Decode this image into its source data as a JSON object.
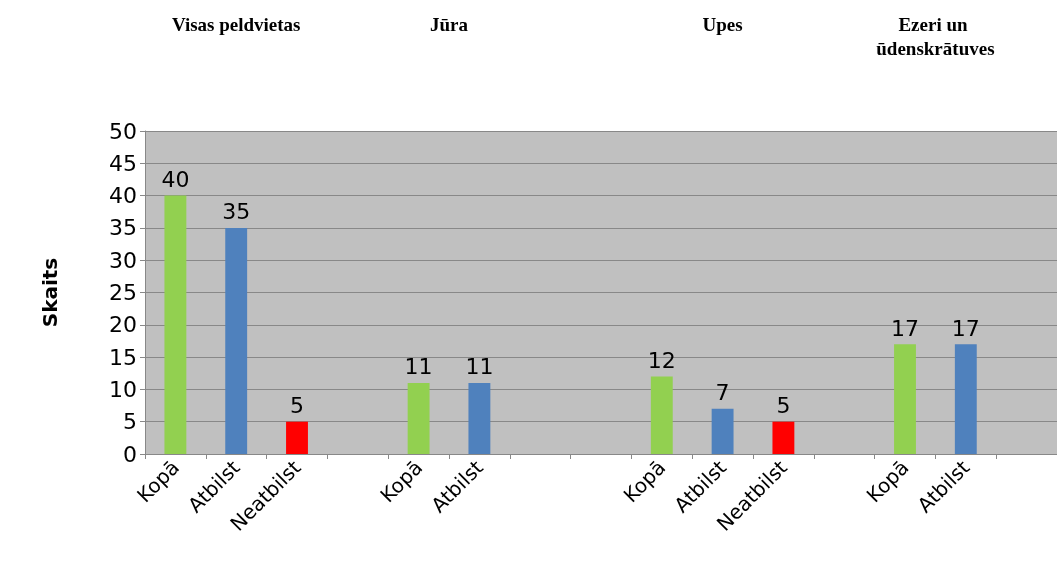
{
  "chart_data": {
    "type": "bar",
    "ylabel": "Skaits",
    "categories": [
      "Kopā",
      "Atbilst",
      "Neatbilst",
      null,
      "Kopā",
      "Atbilst",
      null,
      null,
      "Kopā",
      "Atbilst",
      "Neatbilst",
      null,
      "Kopā",
      "Atbilst",
      null
    ],
    "values": [
      40,
      35,
      5,
      null,
      11,
      11,
      null,
      null,
      12,
      7,
      5,
      null,
      17,
      17,
      null
    ],
    "colors": [
      "#92d050",
      "#4f81bd",
      "#ff0000",
      null,
      "#92d050",
      "#4f81bd",
      null,
      null,
      "#92d050",
      "#4f81bd",
      "#ff0000",
      null,
      "#92d050",
      "#4f81bd",
      null
    ],
    "ylim": [
      0,
      50
    ],
    "yticks": [
      0,
      5,
      10,
      15,
      20,
      25,
      30,
      35,
      40,
      45,
      50
    ],
    "grid": "y",
    "data_labels": true,
    "annotations": [
      "Visas peldvietas",
      "Jūra",
      "Upes",
      "Ezeri un ūdenskrātuves"
    ]
  }
}
